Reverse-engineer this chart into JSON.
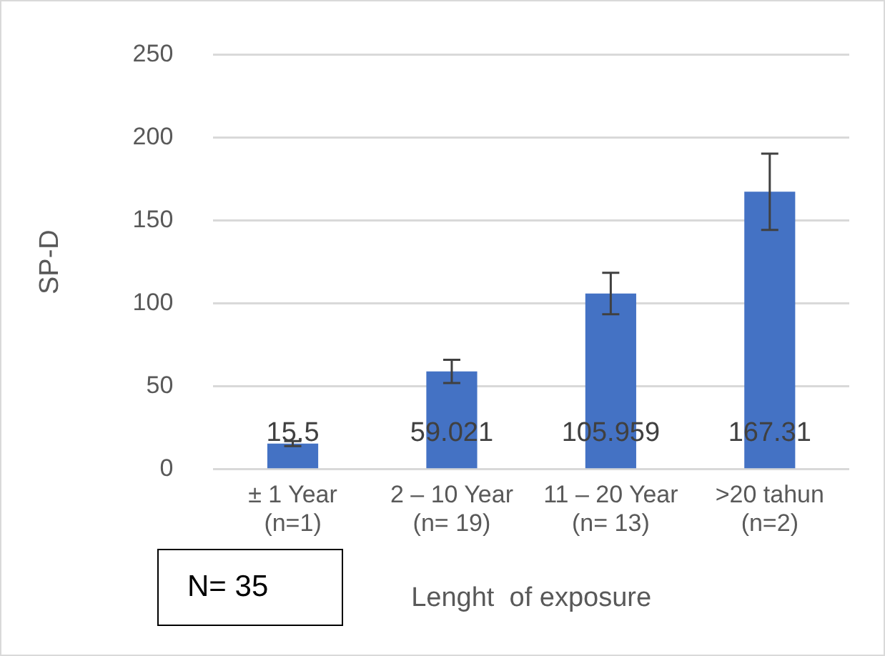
{
  "chart_data": {
    "type": "bar",
    "ylabel": "SP-D",
    "xlabel": "Lenght  of exposure",
    "categories": [
      "± 1 Year (n=1)",
      "2 – 10 Year (n= 19)",
      "11 – 20 Year (n= 13)",
      ">20 tahun (n=2)"
    ],
    "values": [
      15.5,
      59.021,
      105.959,
      167.31
    ],
    "errors": [
      1.5,
      7,
      12.5,
      23
    ],
    "color": "#4472c4",
    "ylim": [
      0,
      250
    ],
    "yticks": [
      0,
      50,
      100,
      150,
      200,
      250
    ],
    "grid": "y",
    "data_labels": true,
    "legend": false,
    "annotations": [
      "N= 35"
    ]
  }
}
